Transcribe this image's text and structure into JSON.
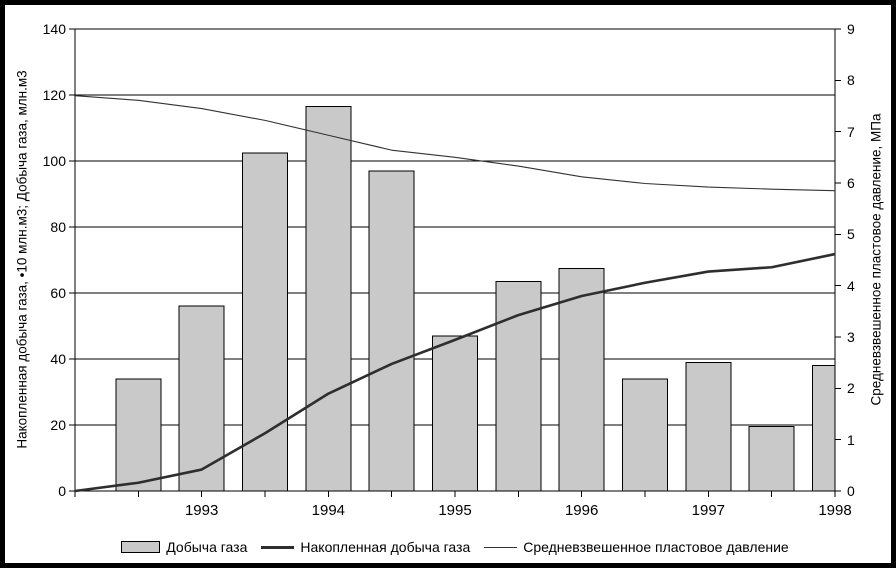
{
  "chart_data": {
    "type": "combo-bar-line",
    "x_axis": {
      "positions_total": 13,
      "year_labels": [
        {
          "label": "1993",
          "position": 2
        },
        {
          "label": "1994",
          "position": 4
        },
        {
          "label": "1995",
          "position": 6
        },
        {
          "label": "1996",
          "position": 8
        },
        {
          "label": "1997",
          "position": 10
        },
        {
          "label": "1998",
          "position": 12
        }
      ]
    },
    "left_axis": {
      "title": "Накопленная добыча газа, •10 млн.м3; Добыча газа, млн.м3",
      "min": 0,
      "max": 140,
      "step": 20,
      "tick_labels": [
        "0",
        "20",
        "40",
        "60",
        "80",
        "100",
        "120",
        "140"
      ]
    },
    "right_axis": {
      "title": "Средневзвешенное пластовое давление, МПа",
      "min": 0,
      "max": 9,
      "step": 1,
      "tick_labels": [
        "0",
        "1",
        "2",
        "3",
        "4",
        "5",
        "6",
        "7",
        "8",
        "9"
      ]
    },
    "series": [
      {
        "name": "Добыча газа",
        "type": "bar",
        "axis": "left",
        "unit": "млн.м3",
        "positions": [
          1,
          2,
          3,
          4,
          5,
          6,
          7,
          8,
          9,
          10,
          11,
          12
        ],
        "values": [
          34,
          56,
          102.5,
          116.5,
          97,
          47,
          63.5,
          67.5,
          34,
          39,
          19.5,
          38
        ]
      },
      {
        "name": "Накопленная добыча газа",
        "type": "line",
        "axis": "left",
        "unit": "•10 млн.м3",
        "positions": [
          0,
          1,
          2,
          3,
          4,
          5,
          6,
          7,
          8,
          9,
          10,
          11,
          12
        ],
        "values": [
          0,
          2.5,
          6.5,
          17.5,
          29.5,
          38.5,
          45.8,
          53.3,
          59.1,
          63.1,
          66.5,
          67.8,
          71.8
        ]
      },
      {
        "name": "Средневзвешенное пластовое давление",
        "type": "line",
        "axis": "right",
        "unit": "МПа",
        "positions": [
          0,
          1,
          2,
          3,
          4,
          5,
          6,
          7,
          8,
          9,
          10,
          11,
          12
        ],
        "values": [
          7.7,
          7.61,
          7.45,
          7.22,
          6.93,
          6.64,
          6.5,
          6.33,
          6.12,
          5.99,
          5.92,
          5.88,
          5.85
        ]
      }
    ],
    "grid": "horizontal",
    "legend_position": "bottom",
    "colors": {
      "bar_fill": "#c9c9c9",
      "bar_stroke": "#000000",
      "cumulative_line": "#2e2e2e",
      "pressure_line": "#333333",
      "gridline": "#000000",
      "axis": "#000000"
    }
  },
  "legend": {
    "items": [
      {
        "label": "Добыча газа"
      },
      {
        "label": "Накопленная добыча газа"
      },
      {
        "label": "Средневзвешенное пластовое давление"
      }
    ]
  }
}
